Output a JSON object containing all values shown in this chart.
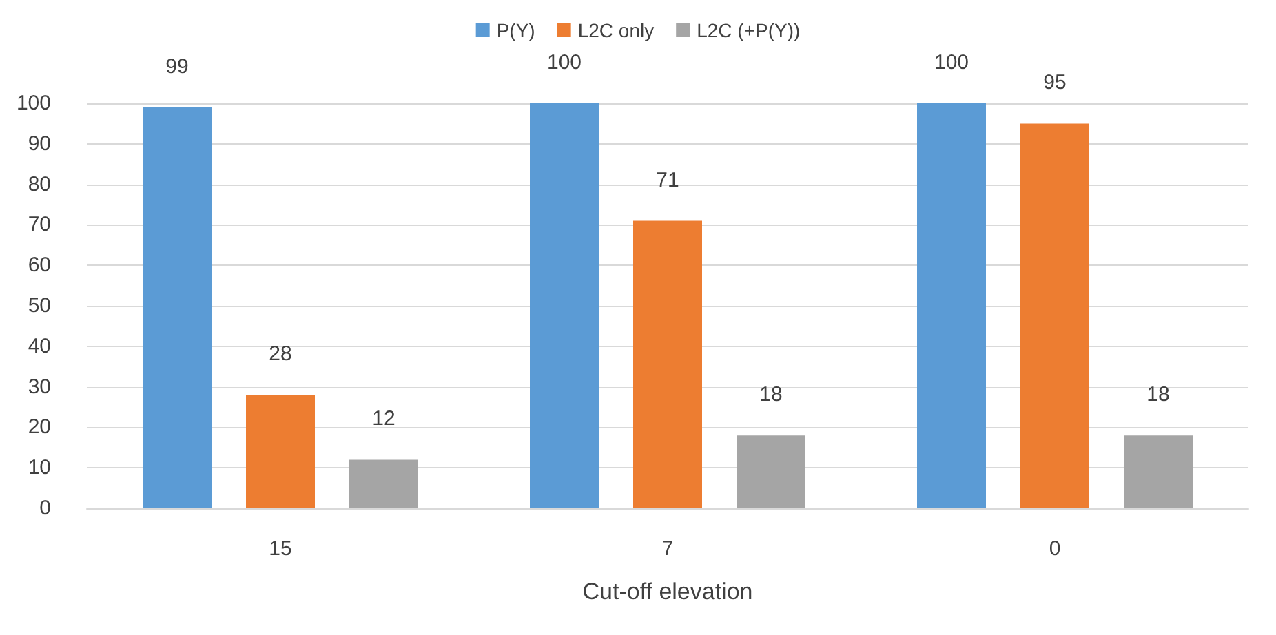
{
  "chart_data": {
    "type": "bar",
    "xlabel": "Cut-off elevation",
    "categories": [
      "15",
      "7",
      "0"
    ],
    "series": [
      {
        "name": "P(Y)",
        "color": "#5b9bd5",
        "values": [
          99,
          100,
          100
        ]
      },
      {
        "name": "L2C only",
        "color": "#ed7d31",
        "values": [
          28,
          71,
          95
        ]
      },
      {
        "name": "L2C (+P(Y))",
        "color": "#a5a5a5",
        "values": [
          12,
          18,
          18
        ]
      }
    ],
    "ylim": [
      0,
      100
    ],
    "yticks": [
      0,
      10,
      20,
      30,
      40,
      50,
      60,
      70,
      80,
      90,
      100
    ],
    "grid": "y",
    "legend": "top",
    "data_labels": true
  }
}
